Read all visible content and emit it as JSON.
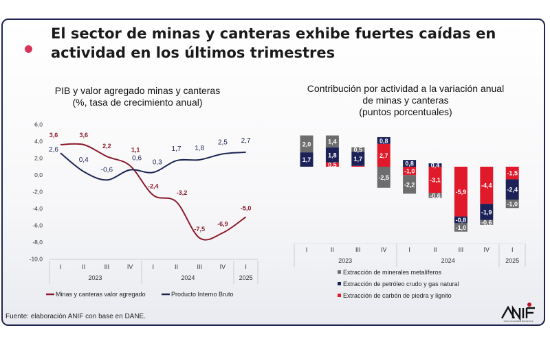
{
  "title": "El sector de minas y canteras exhibe fuertes caídas en actividad en los últimos trimestres",
  "source": "Fuente: elaboración ANIF con base en DANE.",
  "logo": {
    "text": "ANIF",
    "subtitle": "Centro de Estudios Económicos"
  },
  "colors": {
    "frame": "#1e2350",
    "accent_dot": "#d9345a",
    "mining_line": "#8b1a2b",
    "gdp_line": "#1c2451",
    "metal": "#6d6d6d",
    "oil": "#1c2158",
    "coal": "#e0192b"
  },
  "chart_data": [
    {
      "type": "line",
      "title": "PIB y valor agregado minas y canteras",
      "subtitle": "(%, tasa de crecimiento anual)",
      "categories": [
        "I",
        "II",
        "III",
        "IV",
        "I",
        "II",
        "III",
        "IV",
        "I"
      ],
      "years": [
        {
          "label": "2023",
          "span": 4
        },
        {
          "label": "2024",
          "span": 4
        },
        {
          "label": "2025",
          "span": 1
        }
      ],
      "y_ticks": [
        "6,0",
        "4,0",
        "2,0",
        "0,0",
        "-2,0",
        "-4,0",
        "-6,0",
        "-8,0",
        "-10,0"
      ],
      "ylim": [
        -10,
        6
      ],
      "grid": false,
      "legend_position": "bottom",
      "series": [
        {
          "name": "Minas y canteras valor agregado",
          "color": "#8b1a2b",
          "values": [
            3.6,
            3.6,
            2.2,
            1.1,
            -2.4,
            -3.2,
            -7.5,
            -6.9,
            -5.0
          ],
          "labels": [
            "3,6",
            "3,6",
            "2,2",
            "1,1",
            "-2,4",
            "-3,2",
            "-7,5",
            "-6,9",
            "-5,0"
          ]
        },
        {
          "name": "Producto Interno Bruto",
          "color": "#1c2451",
          "values": [
            2.6,
            0.4,
            -0.6,
            0.6,
            0.3,
            1.7,
            1.8,
            2.5,
            2.7
          ],
          "labels": [
            "2,6",
            "0,4",
            "-0,6",
            "0,6",
            "0,3",
            "1,7",
            "1,8",
            "2,5",
            "2,7"
          ]
        }
      ]
    },
    {
      "type": "bar",
      "stacked": true,
      "title": "Contribución por actividad a la variación anual de minas y canteras",
      "subtitle": "(puntos porcentuales)",
      "categories": [
        "I",
        "II",
        "III",
        "IV",
        "I",
        "II",
        "III",
        "IV",
        "I"
      ],
      "years": [
        {
          "label": "2023",
          "span": 4
        },
        {
          "label": "2024",
          "span": 4
        },
        {
          "label": "2025",
          "span": 1
        }
      ],
      "grid": false,
      "legend_position": "bottom",
      "series": [
        {
          "name": "Extracción de minerales metalíferos",
          "color": "#6d6d6d",
          "values": [
            2.0,
            1.4,
            0.5,
            -2.5,
            -2.2,
            -0.6,
            -1.0,
            -0.6,
            -1.0
          ],
          "labels": [
            "2,0",
            "1,4",
            "0,5",
            "-2,5",
            "-2,2",
            "-0,6",
            "-1,0",
            "-0,6",
            "-1,0"
          ]
        },
        {
          "name": "Extracción de petróleo crudo y gas natural",
          "color": "#1c2158",
          "values": [
            1.7,
            1.8,
            1.7,
            0.8,
            0.8,
            0.4,
            -0.8,
            -1.9,
            -2.4
          ],
          "labels": [
            "1,7",
            "1,8",
            "1,7",
            "0,8",
            "0,8",
            "0,4",
            "-0,8",
            "-1,9",
            "-2,4"
          ]
        },
        {
          "name": "Extracción de carbón de piedra y lignito",
          "color": "#e0192b",
          "values": [
            0.0,
            0.5,
            0.1,
            2.7,
            -1.0,
            -3.1,
            -5.9,
            -4.4,
            -1.5
          ],
          "labels": [
            "",
            "0,5",
            "",
            "2,7",
            "-1,0",
            "-3,1",
            "-5,9",
            "-4,4",
            "-1,5"
          ]
        }
      ]
    }
  ]
}
